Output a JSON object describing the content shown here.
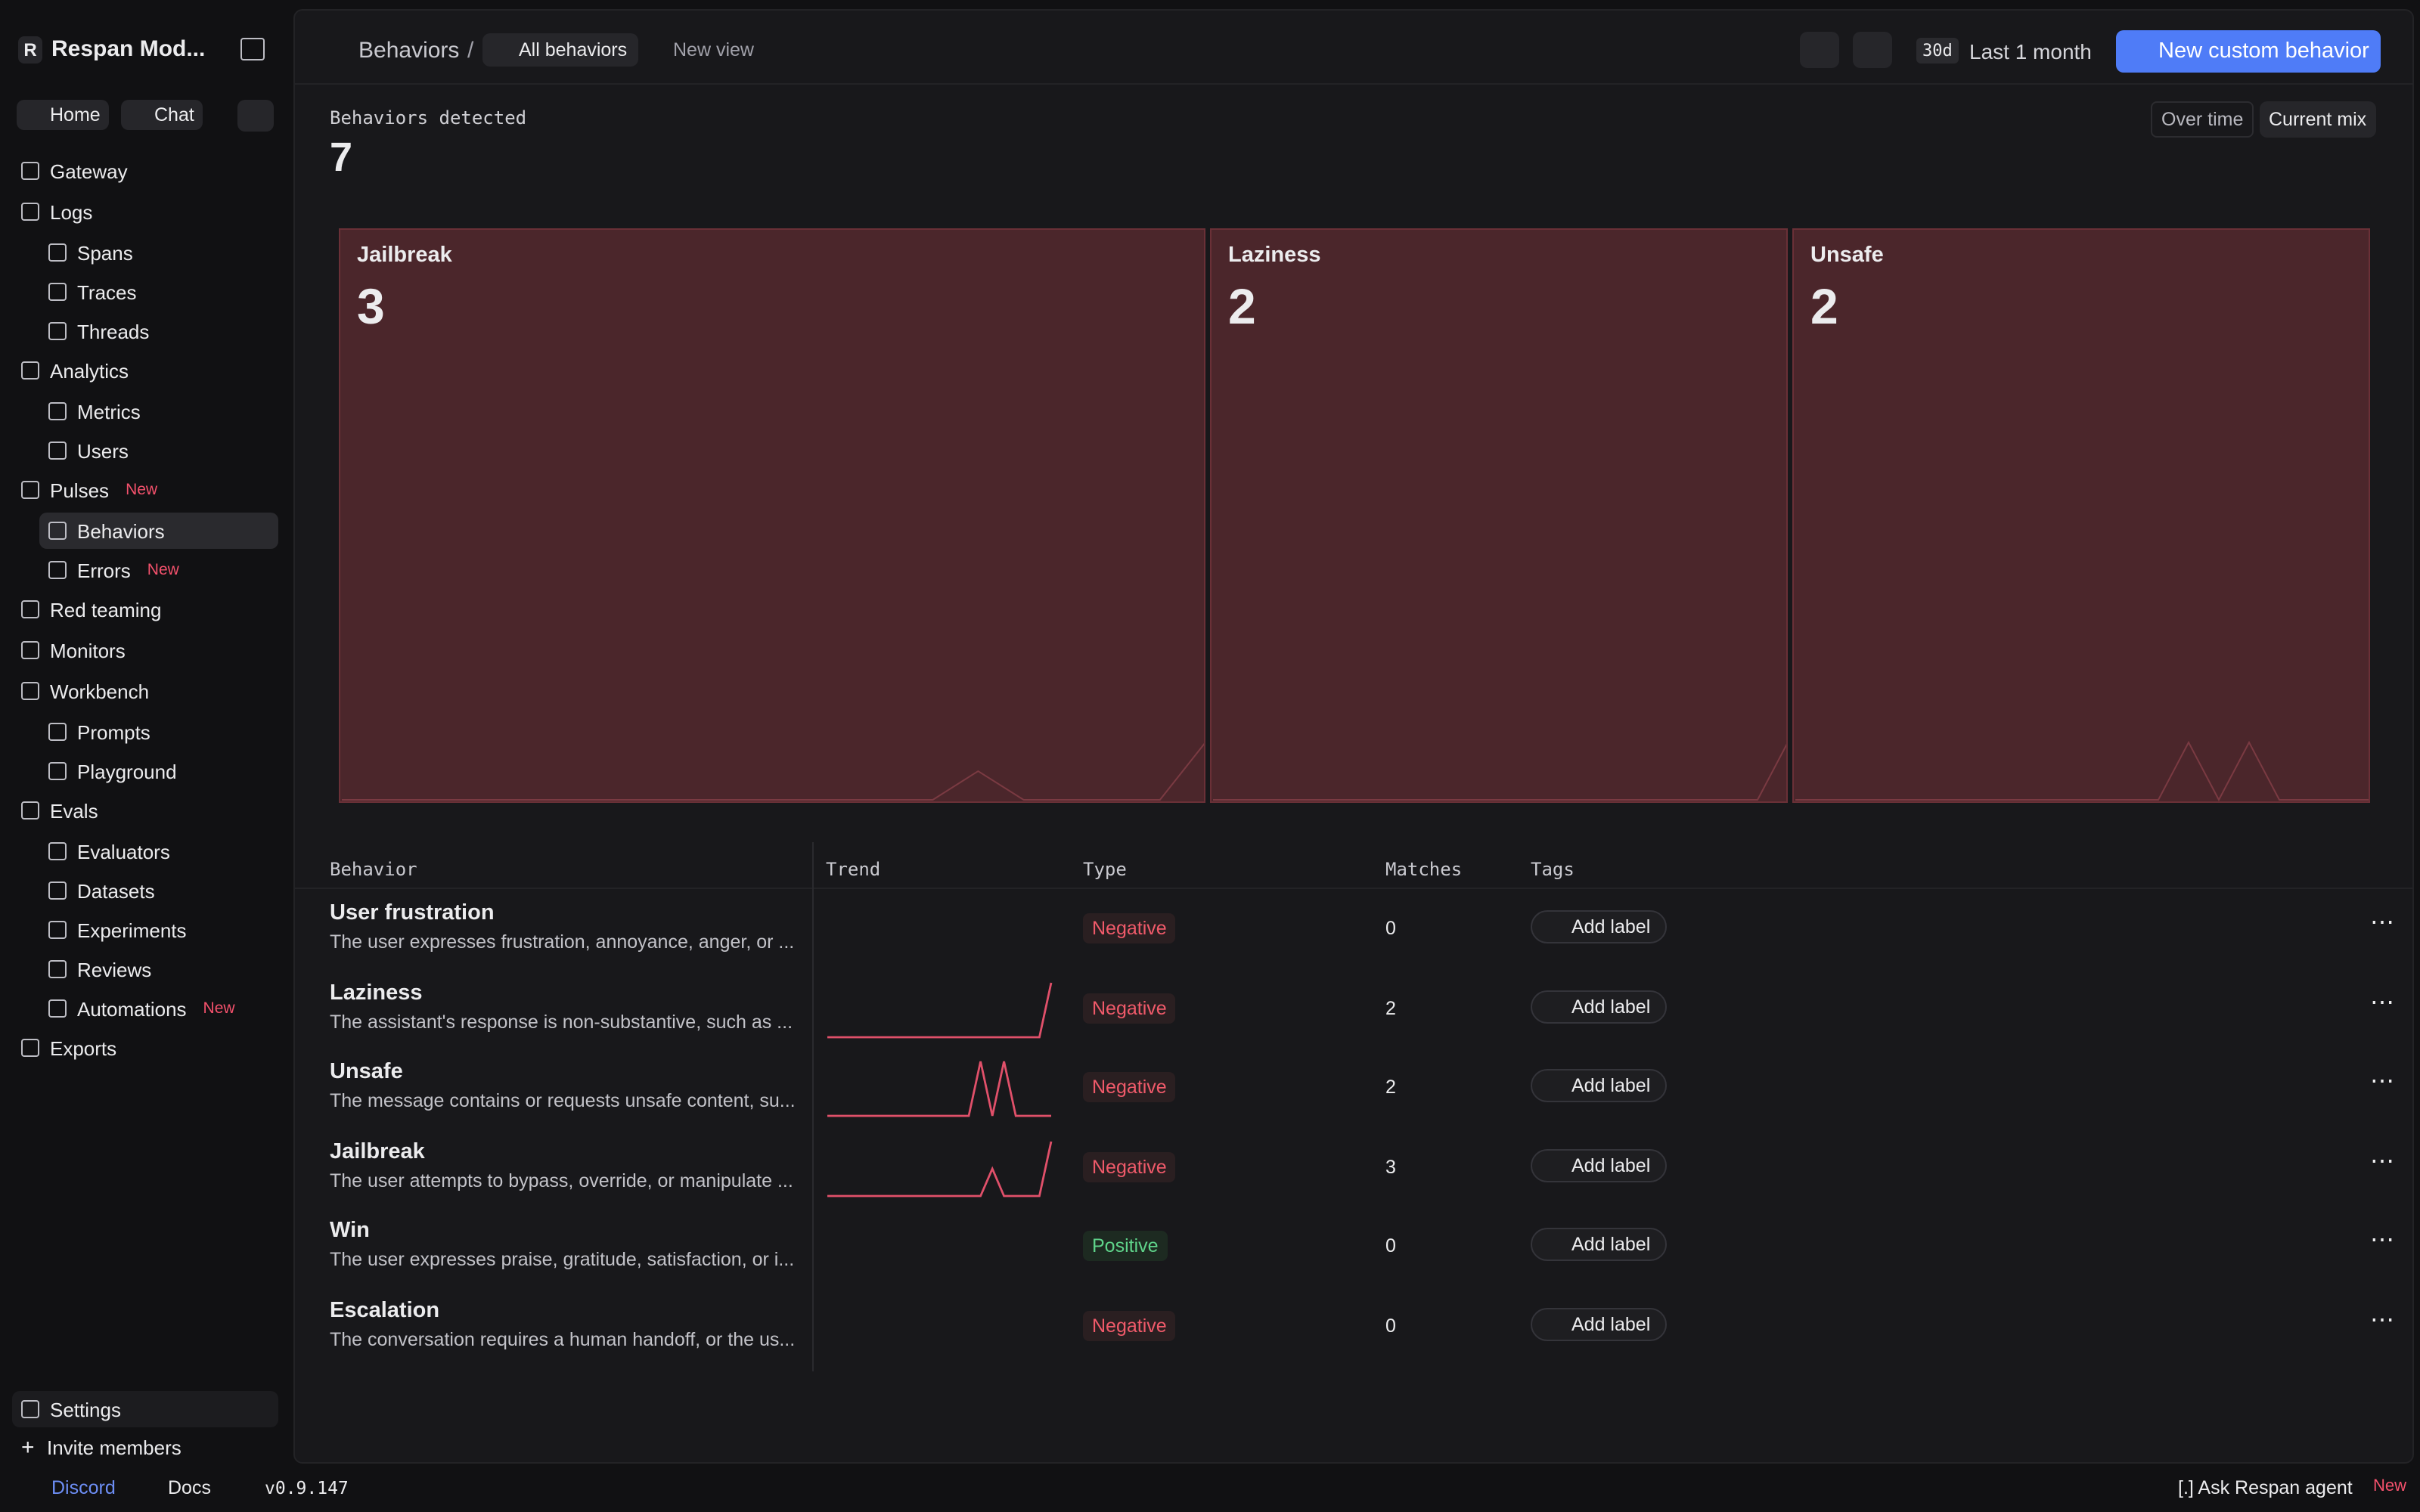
{
  "sidebar": {
    "initial": "R",
    "workspace": "Respan Mod...",
    "top_links": [
      "Home",
      "Chat"
    ],
    "nav": [
      {
        "label": "Gateway"
      },
      {
        "label": "Logs",
        "children": [
          {
            "label": "Spans"
          },
          {
            "label": "Traces"
          },
          {
            "label": "Threads"
          }
        ]
      },
      {
        "label": "Analytics",
        "children": [
          {
            "label": "Metrics"
          },
          {
            "label": "Users"
          }
        ]
      },
      {
        "label": "Pulses",
        "badge": "New",
        "children": [
          {
            "label": "Behaviors"
          },
          {
            "label": "Errors",
            "badge": "New"
          }
        ]
      },
      {
        "label": "Red teaming"
      },
      {
        "label": "Monitors"
      },
      {
        "label": "Workbench",
        "children": [
          {
            "label": "Prompts"
          },
          {
            "label": "Playground"
          }
        ]
      },
      {
        "label": "Evals",
        "children": [
          {
            "label": "Evaluators"
          },
          {
            "label": "Datasets"
          },
          {
            "label": "Experiments"
          },
          {
            "label": "Reviews"
          },
          {
            "label": "Automations",
            "badge": "New"
          }
        ]
      },
      {
        "label": "Exports"
      }
    ],
    "footer": [
      "Settings",
      "Invite members"
    ]
  },
  "bottom_bar": {
    "discord": "Discord",
    "docs": "Docs",
    "version": "v0.9.147",
    "agent": "[.] Ask Respan agent",
    "agent_badge": "New"
  },
  "header": {
    "breadcrumb": "Behaviors",
    "views": [
      "All behaviors",
      "New view"
    ],
    "range_short": "30d",
    "range": "Last 1 month",
    "new_button": "New custom behavior"
  },
  "summary": {
    "label": "Behaviors detected",
    "total": 7,
    "toggle": [
      "Over time",
      "Current mix"
    ]
  },
  "mix": [
    {
      "name": "Jailbreak",
      "count": 3
    },
    {
      "name": "Laziness",
      "count": 2
    },
    {
      "name": "Unsafe",
      "count": 2
    }
  ],
  "table": {
    "columns": [
      "Behavior",
      "Trend",
      "Type",
      "Matches",
      "Tags"
    ],
    "add_label": "Add label",
    "rows": [
      {
        "name": "User frustration",
        "description": "The user expresses frustration, annoyance, anger, or ...",
        "type": "Negative",
        "matches": 0
      },
      {
        "name": "Laziness",
        "description": "The assistant's response is non-substantive, such as ...",
        "trend": [
          0,
          0,
          0,
          0,
          0,
          0,
          0,
          0,
          0,
          0,
          0,
          0,
          0,
          0,
          0,
          0,
          0,
          0,
          0,
          2
        ],
        "type": "Negative",
        "matches": 2
      },
      {
        "name": "Unsafe",
        "description": "The message contains or requests unsafe content, su...",
        "trend": [
          0,
          0,
          0,
          0,
          0,
          0,
          0,
          0,
          0,
          0,
          0,
          0,
          0,
          1,
          0,
          1,
          0,
          0,
          0,
          0
        ],
        "type": "Negative",
        "matches": 2
      },
      {
        "name": "Jailbreak",
        "description": "The user attempts to bypass, override, or manipulate ...",
        "trend": [
          0,
          0,
          0,
          0,
          0,
          0,
          0,
          0,
          0,
          0,
          0,
          0,
          0,
          0,
          1,
          0,
          0,
          0,
          0,
          2
        ],
        "type": "Negative",
        "matches": 3
      },
      {
        "name": "Win",
        "description": "The user expresses praise, gratitude, satisfaction, or i...",
        "type": "Positive",
        "matches": 0
      },
      {
        "name": "Escalation",
        "description": "The conversation requires a human handoff, or the us...",
        "type": "Negative",
        "matches": 0
      }
    ]
  }
}
